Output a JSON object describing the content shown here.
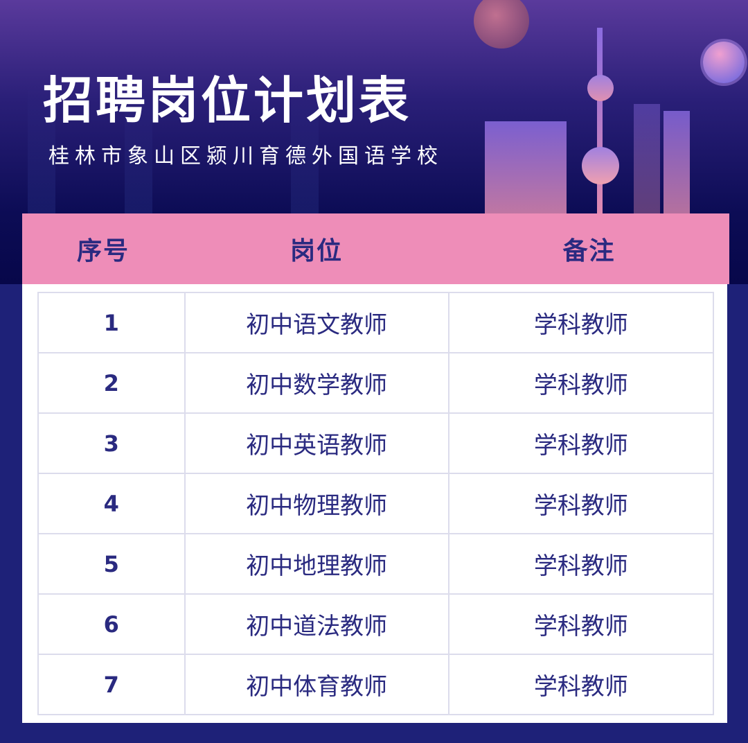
{
  "header": {
    "title": "招聘岗位计划表",
    "subtitle": "桂林市象山区颍川育德外国语学校"
  },
  "table": {
    "columns": [
      "序号",
      "岗位",
      "备注"
    ],
    "rows": [
      [
        "1",
        "初中语文教师",
        "学科教师"
      ],
      [
        "2",
        "初中数学教师",
        "学科教师"
      ],
      [
        "3",
        "初中英语教师",
        "学科教师"
      ],
      [
        "4",
        "初中物理教师",
        "学科教师"
      ],
      [
        "5",
        "初中地理教师",
        "学科教师"
      ],
      [
        "6",
        "初中道法教师",
        "学科教师"
      ],
      [
        "7",
        "初中体育教师",
        "学科教师"
      ]
    ]
  },
  "colors": {
    "header_bg": "#ee8db8",
    "text": "#2a2a80",
    "background": "#1e2178"
  }
}
